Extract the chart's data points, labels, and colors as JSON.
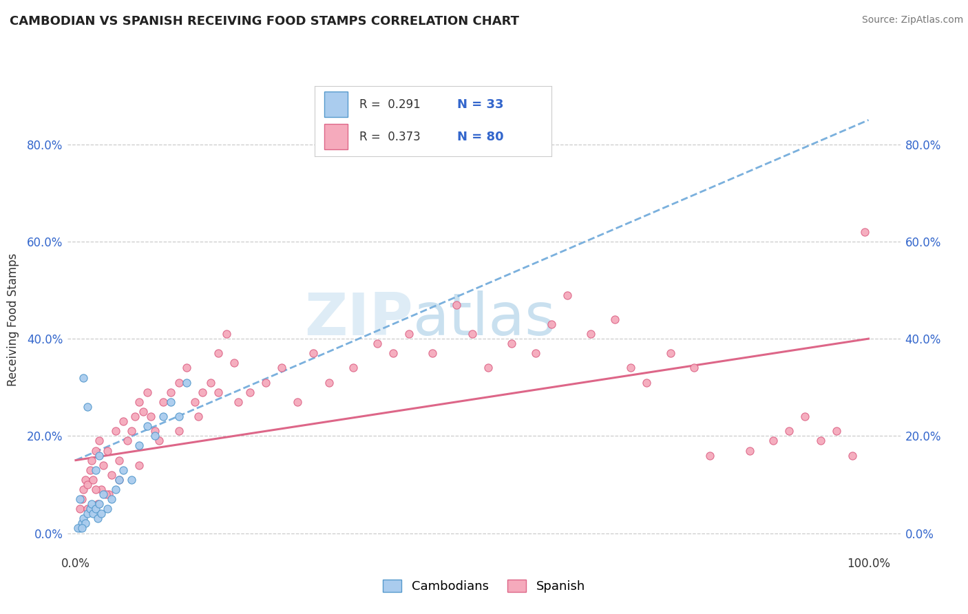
{
  "title": "CAMBODIAN VS SPANISH RECEIVING FOOD STAMPS CORRELATION CHART",
  "source": "Source: ZipAtlas.com",
  "ylabel": "Receiving Food Stamps",
  "ytick_values": [
    0,
    20,
    40,
    60,
    80
  ],
  "ytick_labels": [
    "0.0%",
    "20.0%",
    "40.0%",
    "60.0%",
    "80.0%"
  ],
  "xtick_values": [
    0,
    100
  ],
  "xtick_labels": [
    "0.0%",
    "100.0%"
  ],
  "xlim": [
    -1,
    104
  ],
  "ylim": [
    -4,
    92
  ],
  "cambodian_face": "#aaccee",
  "cambodian_edge": "#5599cc",
  "spanish_face": "#f5aabc",
  "spanish_edge": "#dd6688",
  "trend_cam_color": "#7ab0dd",
  "trend_sp_color": "#dd6688",
  "watermark_zip": "ZIP",
  "watermark_atlas": "atlas",
  "R_cam": "0.291",
  "N_cam": "33",
  "R_sp": "0.373",
  "N_sp": "80",
  "legend_label_cam": "Cambodians",
  "legend_label_sp": "Spanish",
  "cam_x": [
    0.5,
    0.8,
    1.0,
    1.2,
    1.5,
    1.8,
    2.0,
    2.2,
    2.5,
    2.8,
    3.0,
    3.2,
    3.5,
    4.0,
    4.5,
    5.0,
    5.5,
    6.0,
    7.0,
    8.0,
    9.0,
    10.0,
    11.0,
    12.0,
    13.0,
    14.0,
    3.0,
    2.5,
    1.0,
    1.5,
    0.5,
    0.3,
    0.8
  ],
  "cam_y": [
    1,
    2,
    3,
    2,
    4,
    5,
    6,
    4,
    5,
    3,
    6,
    4,
    8,
    5,
    7,
    9,
    11,
    13,
    11,
    18,
    22,
    20,
    24,
    27,
    24,
    31,
    16,
    13,
    32,
    26,
    7,
    1,
    1
  ],
  "sp_x": [
    0.5,
    0.8,
    1.0,
    1.2,
    1.5,
    1.8,
    2.0,
    2.2,
    2.5,
    2.8,
    3.0,
    3.2,
    3.5,
    4.0,
    4.2,
    4.5,
    5.0,
    5.5,
    6.0,
    6.5,
    7.0,
    7.5,
    8.0,
    8.5,
    9.0,
    9.5,
    10.0,
    11.0,
    12.0,
    13.0,
    14.0,
    15.0,
    16.0,
    17.0,
    18.0,
    19.0,
    20.0,
    22.0,
    24.0,
    26.0,
    28.0,
    30.0,
    32.0,
    35.0,
    38.0,
    40.0,
    42.0,
    45.0,
    48.0,
    50.0,
    52.0,
    55.0,
    58.0,
    60.0,
    62.0,
    65.0,
    68.0,
    70.0,
    72.0,
    75.0,
    78.0,
    80.0,
    85.0,
    88.0,
    90.0,
    92.0,
    94.0,
    96.0,
    98.0,
    99.5,
    1.5,
    2.5,
    3.8,
    5.5,
    8.0,
    10.5,
    13.0,
    15.5,
    18.0,
    20.5
  ],
  "sp_y": [
    5,
    7,
    9,
    11,
    10,
    13,
    15,
    11,
    17,
    6,
    19,
    9,
    14,
    17,
    8,
    12,
    21,
    15,
    23,
    19,
    21,
    24,
    27,
    25,
    29,
    24,
    21,
    27,
    29,
    31,
    34,
    27,
    29,
    31,
    37,
    41,
    35,
    29,
    31,
    34,
    27,
    37,
    31,
    34,
    39,
    37,
    41,
    37,
    47,
    41,
    34,
    39,
    37,
    43,
    49,
    41,
    44,
    34,
    31,
    37,
    34,
    16,
    17,
    19,
    21,
    24,
    19,
    21,
    16,
    62,
    5,
    9,
    8,
    11,
    14,
    19,
    21,
    24,
    29,
    27
  ]
}
